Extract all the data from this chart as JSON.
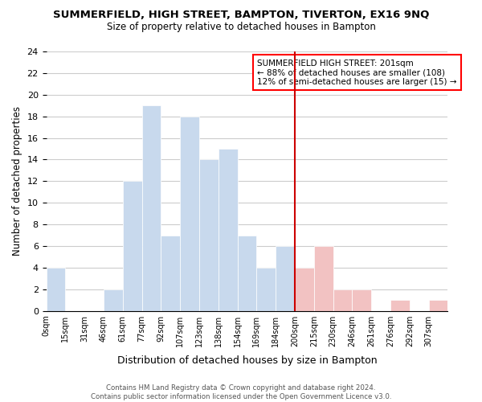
{
  "title": "SUMMERFIELD, HIGH STREET, BAMPTON, TIVERTON, EX16 9NQ",
  "subtitle": "Size of property relative to detached houses in Bampton",
  "xlabel": "Distribution of detached houses by size in Bampton",
  "ylabel": "Number of detached properties",
  "bin_labels": [
    "0sqm",
    "15sqm",
    "31sqm",
    "46sqm",
    "61sqm",
    "77sqm",
    "92sqm",
    "107sqm",
    "123sqm",
    "138sqm",
    "154sqm",
    "169sqm",
    "184sqm",
    "200sqm",
    "215sqm",
    "230sqm",
    "246sqm",
    "261sqm",
    "276sqm",
    "292sqm",
    "307sqm"
  ],
  "bar_heights": [
    4,
    0,
    0,
    2,
    12,
    19,
    7,
    18,
    14,
    15,
    7,
    4,
    6,
    4,
    6,
    2,
    2,
    0,
    1,
    0,
    1
  ],
  "bar_color_left": "#c8d9ed",
  "bar_color_right": "#f2c2c2",
  "split_index": 13,
  "vline_x": 13,
  "annotation_title": "SUMMERFIELD HIGH STREET: 201sqm",
  "annotation_line1": "← 88% of detached houses are smaller (108)",
  "annotation_line2": "12% of semi-detached houses are larger (15) →",
  "ylim": [
    0,
    24
  ],
  "yticks": [
    0,
    2,
    4,
    6,
    8,
    10,
    12,
    14,
    16,
    18,
    20,
    22,
    24
  ],
  "footnote1": "Contains HM Land Registry data © Crown copyright and database right 2024.",
  "footnote2": "Contains public sector information licensed under the Open Government Licence v3.0.",
  "bg_color": "#ffffff",
  "grid_color": "#cccccc",
  "vline_color": "#cc0000"
}
